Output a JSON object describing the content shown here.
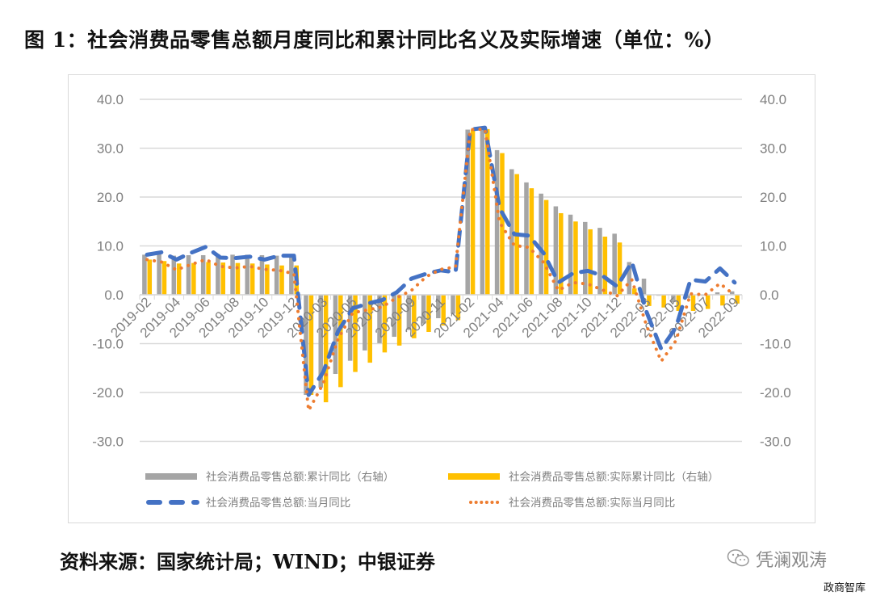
{
  "figure": {
    "title": "图 1：社会消费品零售总额月度同比和累计同比名义及实际增速（单位：%）",
    "source": "资料来源：国家统计局；WIND；中银证券",
    "watermark": "凭澜观涛",
    "watermark_icon": "wechat-icon",
    "corner_label": "政商智库"
  },
  "colors": {
    "cumulative_nominal": "#a5a5a5",
    "cumulative_real": "#ffc000",
    "monthly_nominal": "#4472c4",
    "monthly_real": "#ed7d31",
    "grid": "#d9d9d9",
    "axis_text": "#808080"
  },
  "chart_data": {
    "type": "bar",
    "title": "社会消费品零售总额月度同比和累计同比名义及实际增速（单位：%）",
    "xlabel": "",
    "ylabel": "",
    "ylim": [
      -30,
      40
    ],
    "y_ticks": [
      "40.0",
      "30.0",
      "20.0",
      "10.0",
      "0.0",
      "-10.0",
      "-20.0",
      "-30.0"
    ],
    "y2_ticks": [
      "40.0",
      "30.0",
      "20.0",
      "10.0",
      "0.0",
      "-10.0",
      "-20.0",
      "-30.0"
    ],
    "grid": true,
    "legend_position": "bottom",
    "x_tick_labels": [
      "2019-02",
      "2019-04",
      "2019-06",
      "2019-08",
      "2019-10",
      "2019-12",
      "2020-03",
      "2020-05",
      "2020-07",
      "2020-09",
      "2020-11",
      "2021-02",
      "2021-04",
      "2021-06",
      "2021-08",
      "2021-10",
      "2021-12",
      "2022-03",
      "2022-05",
      "2022-07",
      "2022-09"
    ],
    "categories": [
      "2019-02",
      "2019-03",
      "2019-04",
      "2019-05",
      "2019-06",
      "2019-07",
      "2019-08",
      "2019-09",
      "2019-10",
      "2019-11",
      "2019-12",
      "2020-02",
      "2020-03",
      "2020-04",
      "2020-05",
      "2020-06",
      "2020-07",
      "2020-08",
      "2020-09",
      "2020-10",
      "2020-11",
      "2020-12",
      "2021-02",
      "2021-03",
      "2021-04",
      "2021-05",
      "2021-06",
      "2021-07",
      "2021-08",
      "2021-09",
      "2021-10",
      "2021-11",
      "2021-12",
      "2022-02",
      "2022-03",
      "2022-04",
      "2022-05",
      "2022-06",
      "2022-07",
      "2022-08",
      "2022-09"
    ],
    "series": [
      {
        "name": "社会消费品零售总额:累计同比（右轴）",
        "type": "bar",
        "axis": "right",
        "values": [
          8.2,
          8.3,
          8.0,
          8.1,
          8.1,
          8.3,
          8.2,
          8.2,
          8.1,
          8.0,
          8.0,
          -20.5,
          -19.0,
          -16.2,
          -13.5,
          -11.4,
          -9.9,
          -8.6,
          -7.2,
          -5.9,
          -4.8,
          -3.9,
          33.8,
          33.9,
          29.6,
          25.7,
          23.0,
          20.7,
          18.1,
          16.4,
          14.9,
          13.7,
          12.5,
          6.7,
          3.3,
          -0.2,
          -1.5,
          -0.7,
          -0.2,
          0.5,
          0.7
        ]
      },
      {
        "name": "社会消费品零售总额:实际累计同比（右轴）",
        "type": "bar",
        "axis": "right",
        "values": [
          7.2,
          6.9,
          6.4,
          6.5,
          6.7,
          6.6,
          6.5,
          6.4,
          6.2,
          6.0,
          6.0,
          -20.5,
          -22.0,
          -18.9,
          -15.8,
          -13.9,
          -11.8,
          -10.4,
          -8.9,
          -7.6,
          -6.3,
          -5.2,
          33.8,
          33.9,
          29.0,
          24.7,
          21.8,
          19.4,
          16.7,
          15.0,
          13.4,
          11.9,
          10.7,
          1.3,
          -2.3,
          -2.6,
          -3.3,
          -3.3,
          -2.9,
          -2.2,
          -1.8
        ]
      },
      {
        "name": "社会消费品零售总额:当月同比",
        "type": "line",
        "style": "dashed",
        "axis": "left",
        "values": [
          8.2,
          8.7,
          7.2,
          8.6,
          9.8,
          7.6,
          7.5,
          7.8,
          7.2,
          8.0,
          8.0,
          -20.5,
          -15.8,
          -7.5,
          -2.8,
          -1.8,
          -1.1,
          0.5,
          3.3,
          4.3,
          5.0,
          4.6,
          33.8,
          34.2,
          17.7,
          12.4,
          12.1,
          8.5,
          2.5,
          4.4,
          4.9,
          3.9,
          1.7,
          6.7,
          -3.5,
          -11.1,
          -6.7,
          3.1,
          2.7,
          5.4,
          2.5
        ]
      },
      {
        "name": "社会消费品零售总额:实际当月同比",
        "type": "line",
        "style": "dotted",
        "axis": "left",
        "values": [
          7.2,
          6.7,
          5.1,
          6.2,
          7.2,
          5.8,
          5.5,
          5.8,
          5.2,
          5.0,
          4.3,
          -23.7,
          -18.1,
          -9.1,
          -3.7,
          -3.1,
          -2.5,
          -0.6,
          0.9,
          3.7,
          5.2,
          5.7,
          33.8,
          33.9,
          14.8,
          10.1,
          9.7,
          6.6,
          0.9,
          2.5,
          2.2,
          1.0,
          -0.2,
          3.1,
          -6.3,
          -13.6,
          -9.4,
          0.2,
          0.0,
          2.3,
          -0.1
        ]
      }
    ],
    "legend": [
      {
        "label": "社会消费品零售总额:累计同比（右轴）",
        "marker": "solid-bar",
        "color": "#a5a5a5"
      },
      {
        "label": "社会消费品零售总额:实际累计同比（右轴）",
        "marker": "solid-bar",
        "color": "#ffc000"
      },
      {
        "label": "社会消费品零售总额:当月同比",
        "marker": "dashed-line",
        "color": "#4472c4"
      },
      {
        "label": "社会消费品零售总额:实际当月同比",
        "marker": "dotted-line",
        "color": "#ed7d31"
      }
    ]
  }
}
